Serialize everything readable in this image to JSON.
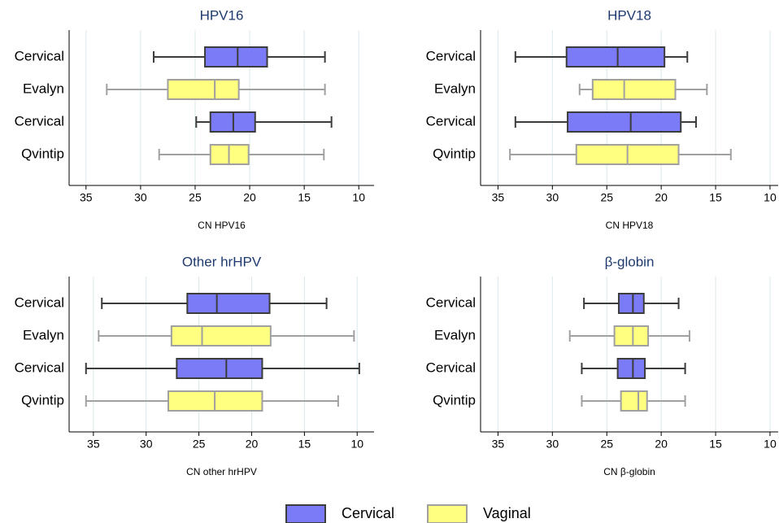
{
  "chart_data": [
    {
      "type": "boxplot",
      "title": "HPV16",
      "xlabel": "CN HPV16",
      "categories": [
        "Cervical",
        "Evalyn",
        "Cervical",
        "Qvintip"
      ],
      "boxes": [
        {
          "group": 0,
          "min": 13.1,
          "q1": 18.4,
          "median": 21.1,
          "q3": 24.1,
          "max": 28.8
        },
        {
          "group": 1,
          "min": 13.1,
          "q1": 21.0,
          "median": 23.2,
          "q3": 27.5,
          "max": 33.1
        },
        {
          "group": 0,
          "min": 12.5,
          "q1": 19.5,
          "median": 21.5,
          "q3": 23.6,
          "max": 24.9
        },
        {
          "group": 1,
          "min": 13.2,
          "q1": 20.1,
          "median": 21.9,
          "q3": 23.6,
          "max": 28.3
        }
      ],
      "xlim": [
        36.55,
        8.6
      ],
      "xticks": [
        35,
        30,
        25,
        20,
        15,
        10
      ],
      "grid": true
    },
    {
      "type": "boxplot",
      "title": "HPV18",
      "xlabel": "CN HPV18",
      "categories": [
        "Cervical",
        "Evalyn",
        "Cervical",
        "Qvintip"
      ],
      "boxes": [
        {
          "group": 0,
          "min": 17.6,
          "q1": 19.7,
          "median": 24.0,
          "q3": 28.7,
          "max": 33.4
        },
        {
          "group": 1,
          "min": 15.8,
          "q1": 18.7,
          "median": 23.4,
          "q3": 26.3,
          "max": 27.5
        },
        {
          "group": 0,
          "min": 16.8,
          "q1": 18.2,
          "median": 22.8,
          "q3": 28.6,
          "max": 33.4
        },
        {
          "group": 1,
          "min": 13.6,
          "q1": 18.4,
          "median": 23.1,
          "q3": 27.8,
          "max": 33.9
        }
      ],
      "xlim": [
        36.6,
        9.25
      ],
      "xticks": [
        35,
        30,
        25,
        20,
        15,
        10
      ],
      "grid": true
    },
    {
      "type": "boxplot",
      "title": "Other hrHPV",
      "xlabel": "CN other hrHPV",
      "categories": [
        "Cervical",
        "Evalyn",
        "Cervical",
        "Qvintip"
      ],
      "boxes": [
        {
          "group": 0,
          "min": 12.9,
          "q1": 18.3,
          "median": 23.3,
          "q3": 26.1,
          "max": 34.2
        },
        {
          "group": 1,
          "min": 10.3,
          "q1": 18.2,
          "median": 24.7,
          "q3": 27.6,
          "max": 34.5
        },
        {
          "group": 0,
          "min": 9.8,
          "q1": 19.0,
          "median": 22.4,
          "q3": 27.1,
          "max": 35.7
        },
        {
          "group": 1,
          "min": 11.8,
          "q1": 19.0,
          "median": 23.5,
          "q3": 27.9,
          "max": 35.7
        }
      ],
      "xlim": [
        37.3,
        8.4
      ],
      "xticks": [
        35,
        30,
        25,
        20,
        15,
        10
      ],
      "grid": true
    },
    {
      "type": "boxplot",
      "title": "β-globin",
      "xlabel": "CN β-globin",
      "categories": [
        "Cervical",
        "Evalyn",
        "Cervical",
        "Qvintip"
      ],
      "boxes": [
        {
          "group": 0,
          "min": 18.4,
          "q1": 21.6,
          "median": 22.6,
          "q3": 23.9,
          "max": 27.1
        },
        {
          "group": 1,
          "min": 17.4,
          "q1": 21.2,
          "median": 22.6,
          "q3": 24.3,
          "max": 28.4
        },
        {
          "group": 0,
          "min": 17.8,
          "q1": 21.5,
          "median": 22.6,
          "q3": 24.0,
          "max": 27.3
        },
        {
          "group": 1,
          "min": 17.8,
          "q1": 21.3,
          "median": 22.1,
          "q3": 23.7,
          "max": 27.3
        }
      ],
      "xlim": [
        36.6,
        9.25
      ],
      "xticks": [
        35,
        30,
        25,
        20,
        15,
        10
      ],
      "grid": true
    }
  ],
  "legend": [
    {
      "name": "Cervical",
      "color": "#7b7bf7",
      "edge": "#3c3c3c"
    },
    {
      "name": "Vaginal",
      "color": "#ffff80",
      "edge": "#a0a0a0"
    }
  ]
}
